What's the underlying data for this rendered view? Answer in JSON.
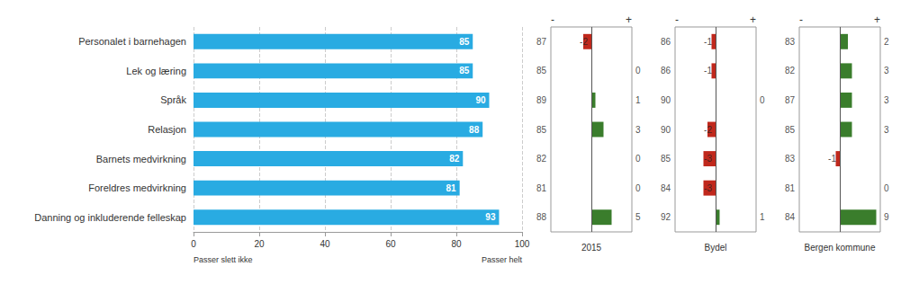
{
  "chart_data": [
    {
      "type": "bar",
      "orientation": "horizontal",
      "categories": [
        "Personalet i barnehagen",
        "Lek og læring",
        "Språk",
        "Relasjon",
        "Barnets medvirkning",
        "Foreldres medvirkning",
        "Danning og inkluderende felleskap"
      ],
      "values": [
        85,
        85,
        90,
        88,
        82,
        81,
        93
      ],
      "color": "#29ABE2",
      "xlim": [
        0,
        100
      ],
      "xticks": [
        0,
        20,
        40,
        60,
        80,
        100
      ],
      "grid": true,
      "data_labels": true,
      "annotations": [
        "Passer slett ikke",
        "Passer helt"
      ]
    },
    {
      "type": "bar",
      "orientation": "horizontal",
      "xlabel": "2015",
      "categories": [
        "Personalet i barnehagen",
        "Lek og læring",
        "Språk",
        "Relasjon",
        "Barnets medvirkning",
        "Foreldres medvirkning",
        "Danning og inkluderende felleskap"
      ],
      "values": [
        -2,
        0,
        1,
        3,
        0,
        0,
        5
      ],
      "colors": [
        "#C0281C",
        null,
        "#3A7D2C",
        "#3A7D2C",
        null,
        null,
        "#3A7D2C"
      ],
      "reference_values": [
        87,
        85,
        89,
        85,
        82,
        81,
        88
      ],
      "xlim": [
        -10,
        10
      ],
      "xticks": [],
      "grid": false,
      "data_labels": true,
      "tick_labels": false,
      "annotations": [
        "-",
        "+"
      ]
    },
    {
      "type": "bar",
      "orientation": "horizontal",
      "xlabel": "Bydel",
      "categories": [
        "Personalet i barnehagen",
        "Lek og læring",
        "Språk",
        "Relasjon",
        "Barnets medvirkning",
        "Foreldres medvirkning",
        "Danning og inkluderende felleskap"
      ],
      "values": [
        -1,
        -1,
        0,
        -2,
        -3,
        -3,
        1
      ],
      "colors": [
        "#C0281C",
        "#C0281C",
        null,
        "#C0281C",
        "#C0281C",
        "#C0281C",
        "#3A7D2C"
      ],
      "reference_values": [
        86,
        86,
        90,
        90,
        85,
        84,
        92
      ],
      "xlim": [
        -10,
        10
      ],
      "xticks": [],
      "grid": false,
      "data_labels": true,
      "tick_labels": false,
      "annotations": [
        "-",
        "+"
      ]
    },
    {
      "type": "bar",
      "orientation": "horizontal",
      "xlabel": "Bergen kommune",
      "categories": [
        "Personalet i barnehagen",
        "Lek og læring",
        "Språk",
        "Relasjon",
        "Barnets medvirkning",
        "Foreldres medvirkning",
        "Danning og inkluderende felleskap"
      ],
      "values": [
        2,
        3,
        3,
        3,
        -1,
        0,
        9
      ],
      "colors": [
        "#3A7D2C",
        "#3A7D2C",
        "#3A7D2C",
        "#3A7D2C",
        "#C0281C",
        null,
        "#3A7D2C"
      ],
      "reference_values": [
        83,
        82,
        87,
        85,
        83,
        81,
        84
      ],
      "xlim": [
        -10,
        10
      ],
      "xticks": [],
      "grid": false,
      "data_labels": true,
      "tick_labels": false,
      "annotations": [
        "-",
        "+"
      ]
    }
  ]
}
